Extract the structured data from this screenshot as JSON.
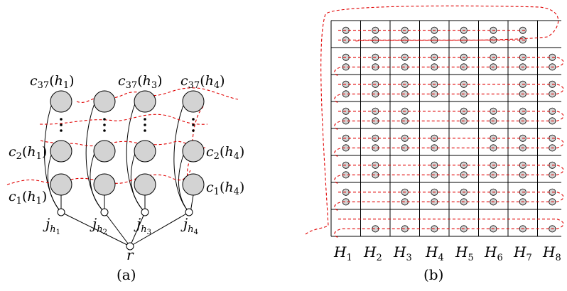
{
  "panel_a": {
    "caption": "(a)",
    "top_labels": [
      {
        "base": "c",
        "sub": "37",
        "arg": "h",
        "argsub": "1"
      },
      {
        "base": "c",
        "sub": "37",
        "arg": "h",
        "argsub": "3"
      },
      {
        "base": "c",
        "sub": "37",
        "arg": "h",
        "argsub": "4"
      }
    ],
    "mid_labels": [
      {
        "base": "c",
        "sub": "2",
        "arg": "h",
        "argsub": "1"
      },
      {
        "base": "c",
        "sub": "2",
        "arg": "h",
        "argsub": "4"
      }
    ],
    "bot_labels": [
      {
        "base": "c",
        "sub": "1",
        "arg": "h",
        "argsub": "1"
      },
      {
        "base": "c",
        "sub": "1",
        "arg": "h",
        "argsub": "4"
      }
    ],
    "j_labels": [
      {
        "base": "j",
        "sub": "h",
        "subsub": "1"
      },
      {
        "base": "j",
        "sub": "h",
        "subsub": "2"
      },
      {
        "base": "j",
        "sub": "h",
        "subsub": "3"
      },
      {
        "base": "j",
        "sub": "h",
        "subsub": "4"
      }
    ],
    "root_label": "r"
  },
  "panel_b": {
    "caption": "(b)",
    "column_labels": [
      {
        "base": "H",
        "sub": "1"
      },
      {
        "base": "H",
        "sub": "2"
      },
      {
        "base": "H",
        "sub": "3"
      },
      {
        "base": "H",
        "sub": "4"
      },
      {
        "base": "H",
        "sub": "5"
      },
      {
        "base": "H",
        "sub": "6"
      },
      {
        "base": "H",
        "sub": "7"
      },
      {
        "base": "H",
        "sub": "8"
      }
    ],
    "occupancy": [
      [
        [
          1,
          1
        ],
        [
          1,
          1
        ],
        [
          1,
          1
        ],
        [
          1,
          1
        ],
        [
          1,
          1
        ],
        [
          1,
          1
        ],
        [
          1,
          1
        ],
        [
          0,
          0
        ]
      ],
      [
        [
          1,
          1
        ],
        [
          1,
          1
        ],
        [
          1,
          1
        ],
        [
          1,
          1
        ],
        [
          1,
          1
        ],
        [
          1,
          1
        ],
        [
          1,
          1
        ],
        [
          1,
          1
        ]
      ],
      [
        [
          1,
          1
        ],
        [
          1,
          1
        ],
        [
          1,
          1
        ],
        [
          1,
          1
        ],
        [
          1,
          1
        ],
        [
          0,
          0
        ],
        [
          1,
          1
        ],
        [
          1,
          1
        ]
      ],
      [
        [
          1,
          1
        ],
        [
          1,
          1
        ],
        [
          1,
          1
        ],
        [
          0,
          0
        ],
        [
          1,
          1
        ],
        [
          1,
          1
        ],
        [
          1,
          1
        ],
        [
          1,
          1
        ]
      ],
      [
        [
          1,
          1
        ],
        [
          1,
          1
        ],
        [
          1,
          1
        ],
        [
          1,
          1
        ],
        [
          0,
          0
        ],
        [
          1,
          1
        ],
        [
          1,
          1
        ],
        [
          1,
          1
        ]
      ],
      [
        [
          1,
          1
        ],
        [
          1,
          1
        ],
        [
          0,
          0
        ],
        [
          1,
          1
        ],
        [
          1,
          1
        ],
        [
          1,
          1
        ],
        [
          1,
          1
        ],
        [
          1,
          1
        ]
      ],
      [
        [
          1,
          1
        ],
        [
          0,
          0
        ],
        [
          1,
          1
        ],
        [
          1,
          1
        ],
        [
          1,
          1
        ],
        [
          1,
          1
        ],
        [
          1,
          1
        ],
        [
          1,
          1
        ]
      ],
      [
        [
          0,
          0
        ],
        [
          0,
          1
        ],
        [
          0,
          1
        ],
        [
          0,
          1
        ],
        [
          0,
          1
        ],
        [
          0,
          1
        ],
        [
          0,
          1
        ],
        [
          0,
          1
        ]
      ]
    ]
  },
  "colors": {
    "node_fill": "#d3d3d3",
    "dash": "#e00000"
  }
}
